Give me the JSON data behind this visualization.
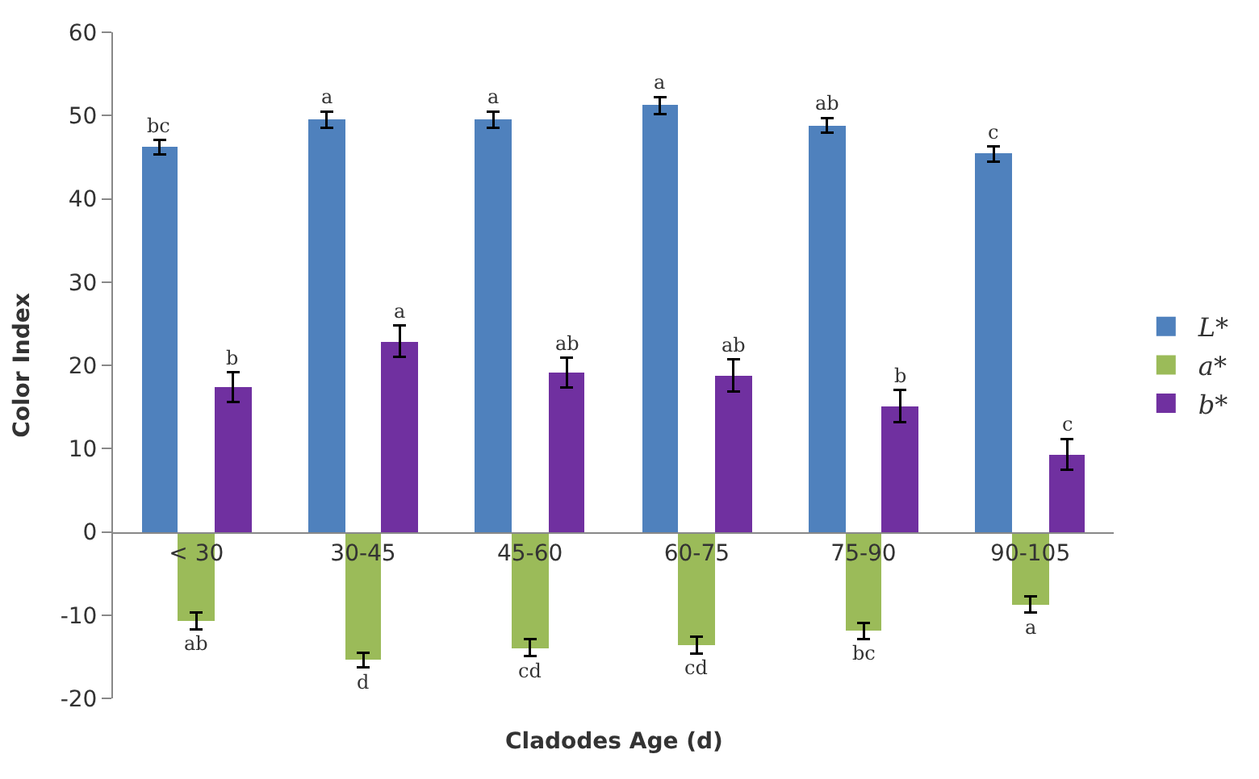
{
  "chart_data": {
    "type": "bar",
    "xlabel": "Cladodes Age (d)",
    "ylabel": "Color Index",
    "categories": [
      "< 30",
      "30-45",
      "45-60",
      "60-75",
      "75-90",
      "90-105"
    ],
    "series": [
      {
        "name": "L*",
        "color": "#4f81bd",
        "values": [
          46.2,
          49.5,
          49.5,
          51.2,
          48.8,
          45.4
        ],
        "errors": [
          0.9,
          1,
          1,
          1,
          0.9,
          0.9
        ],
        "value_labels": [
          "bc",
          "a",
          "a",
          "a",
          "ab",
          "c"
        ]
      },
      {
        "name": "a*",
        "color": "#9bbb59",
        "values": [
          -10.7,
          -15.4,
          -13.9,
          -13.6,
          -11.9,
          -8.7
        ],
        "errors": [
          1,
          0.9,
          1,
          1,
          1,
          1
        ],
        "value_labels": [
          "ab",
          "d",
          "cd",
          "cd",
          "bc",
          "a"
        ]
      },
      {
        "name": "b*",
        "color": "#7030a0",
        "values": [
          17.4,
          22.9,
          19.1,
          18.8,
          15.1,
          9.3
        ],
        "errors": [
          1.8,
          1.9,
          1.8,
          1.9,
          1.9,
          1.8
        ],
        "value_labels": [
          "b",
          "a",
          "ab",
          "ab",
          "b",
          "c"
        ]
      }
    ],
    "ylim": [
      -20,
      60
    ],
    "yticks": [
      -20,
      -10,
      0,
      10,
      20,
      30,
      40,
      50,
      60
    ],
    "legend": "right"
  }
}
